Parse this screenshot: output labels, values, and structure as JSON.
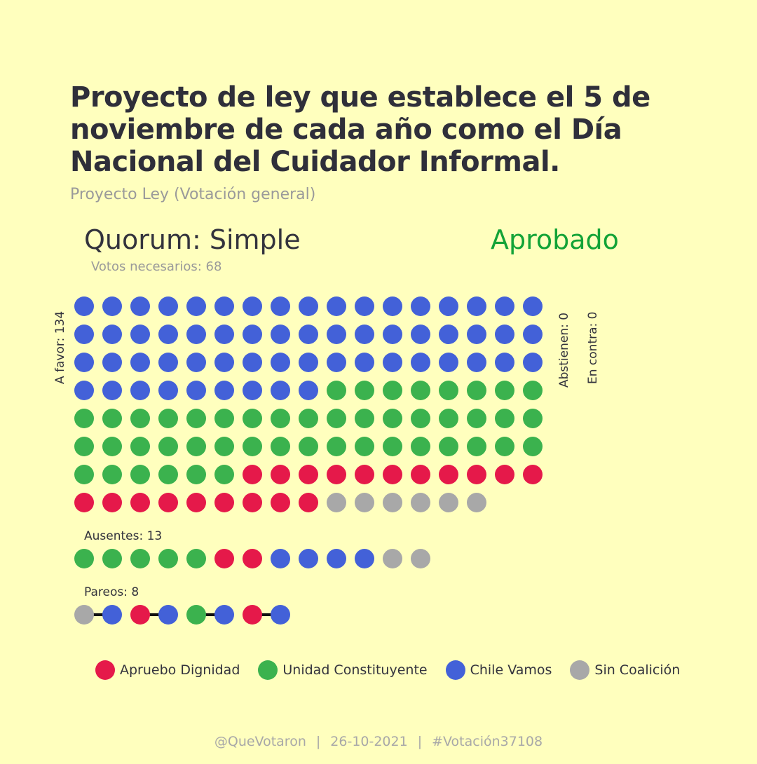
{
  "title": "Proyecto de ley que establece el 5 de noviembre de cada año como el Día Nacional del Cuidador Informal.",
  "subtitle": "Proyecto Ley (Votación general)",
  "quorum": "Quorum: Simple",
  "result": "Aprobado",
  "votes_needed": "Votos necesarios: 68",
  "colors": {
    "apruebo": "#e5194a",
    "unidad": "#3bb24e",
    "chile": "#4361d8",
    "sin": "#a8a8a8",
    "result": "#13a337"
  },
  "chart_data": {
    "type": "waffle",
    "groups": [
      {
        "label": "A favor: 134",
        "total": 134,
        "counts": {
          "chile": 60,
          "unidad": 48,
          "apruebo": 20,
          "sin": 6
        }
      },
      {
        "label": "Abstienen: 0",
        "total": 0,
        "counts": {}
      },
      {
        "label": "En contra: 0",
        "total": 0,
        "counts": {}
      },
      {
        "label": "Ausentes: 13",
        "total": 13,
        "counts": {
          "unidad": 5,
          "apruebo": 2,
          "chile": 4,
          "sin": 2
        }
      },
      {
        "label": "Pareos: 8",
        "total": 8,
        "pairs": [
          [
            "sin",
            "chile"
          ],
          [
            "apruebo",
            "chile"
          ],
          [
            "unidad",
            "chile"
          ],
          [
            "apruebo",
            "chile"
          ]
        ]
      }
    ],
    "legend": [
      {
        "key": "apruebo",
        "label": "Apruebo Dignidad"
      },
      {
        "key": "unidad",
        "label": "Unidad Constituyente"
      },
      {
        "key": "chile",
        "label": "Chile Vamos"
      },
      {
        "key": "sin",
        "label": "Sin Coalición"
      }
    ]
  },
  "footer": {
    "handle": "@QueVotaron",
    "date": "26-10-2021",
    "tag": "#Votación37108",
    "separator": "|"
  }
}
